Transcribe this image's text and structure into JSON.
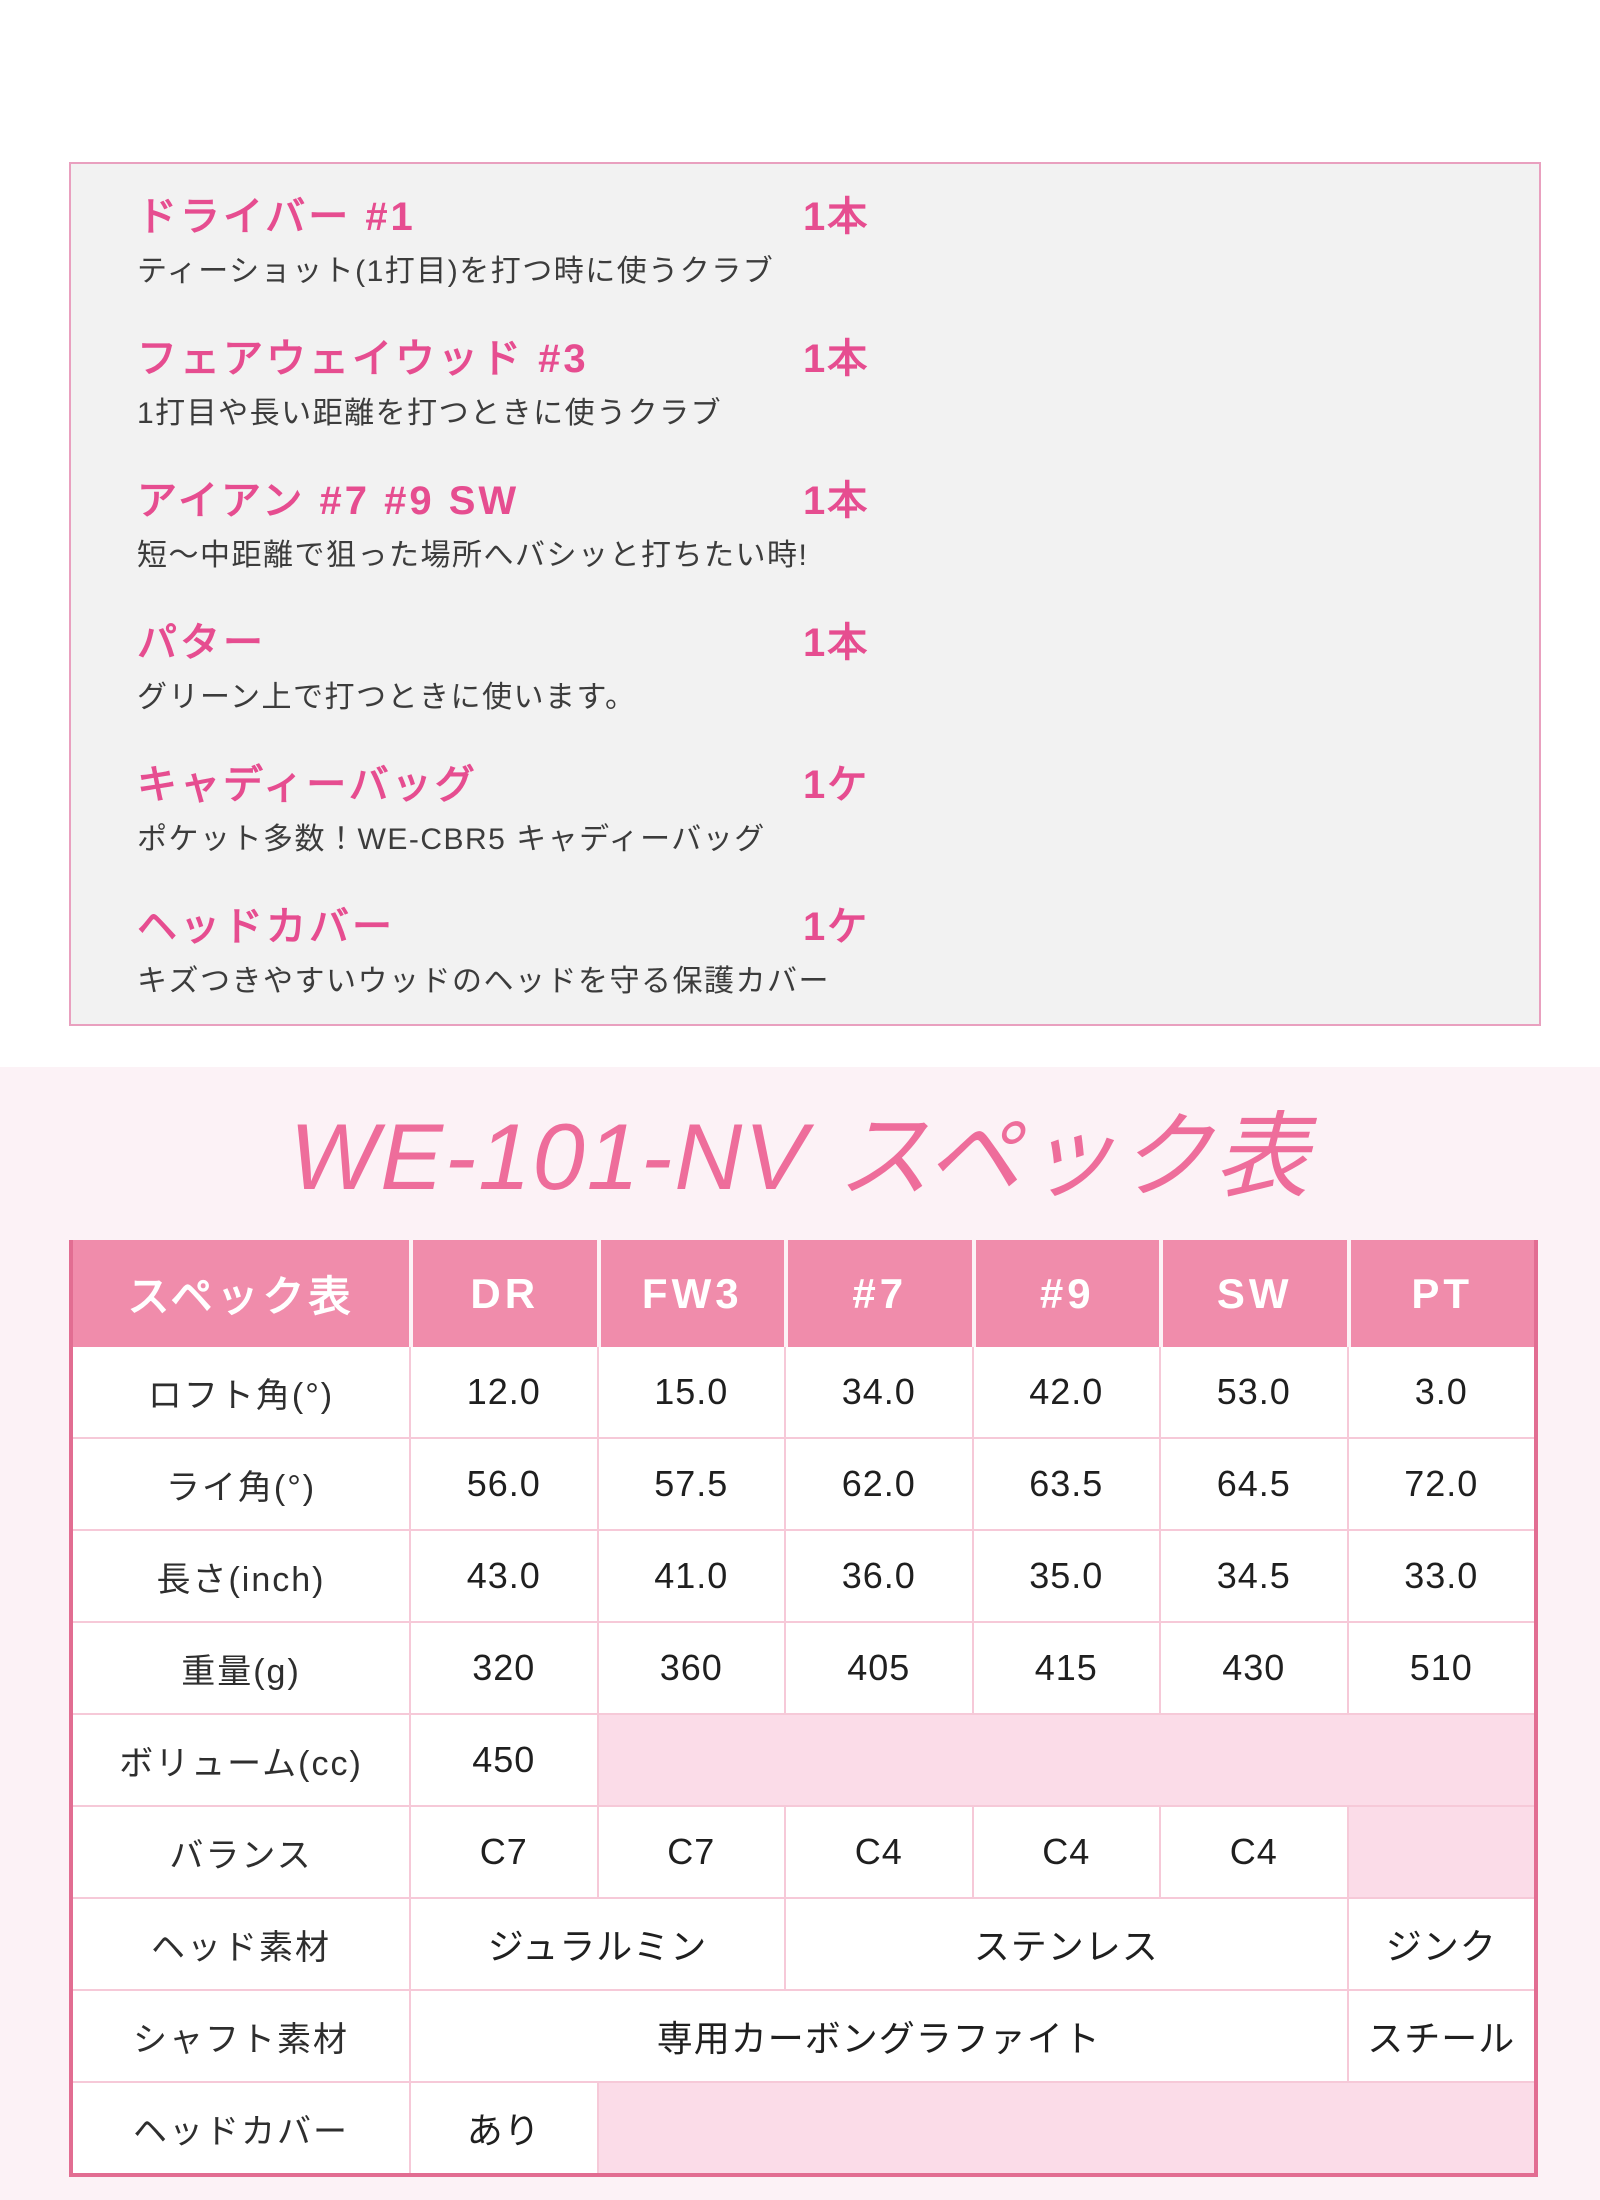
{
  "set_contents": {
    "items": [
      {
        "name": "ドライバー #1",
        "count": "1本",
        "desc": "ティーショット(1打目)を打つ時に使うクラブ"
      },
      {
        "name": "フェアウェイウッド #3",
        "count": "1本",
        "desc": "1打目や長い距離を打つときに使うクラブ"
      },
      {
        "name": "アイアン #7 #9 SW",
        "count": "1本",
        "desc": "短〜中距離で狙った場所へバシッと打ちたい時!"
      },
      {
        "name": "パター",
        "count": "1本",
        "desc": "グリーン上で打つときに使います。"
      },
      {
        "name": "キャディーバッグ",
        "count": "1ケ",
        "desc": "ポケット多数！WE-CBR5 キャディーバッグ"
      },
      {
        "name": "ヘッドカバー",
        "count": "1ケ",
        "desc": "キズつきやすいウッドのヘッドを守る保護カバー"
      }
    ]
  },
  "spec": {
    "title": "WE-101-NV スペック表",
    "table": {
      "header": [
        "スペック表",
        "DR",
        "FW3",
        "#7",
        "#9",
        "SW",
        "PT"
      ],
      "rows": {
        "loft": {
          "label": "ロフト角(°)",
          "values": [
            "12.0",
            "15.0",
            "34.0",
            "42.0",
            "53.0",
            "3.0"
          ]
        },
        "lie": {
          "label": "ライ角(°)",
          "values": [
            "56.0",
            "57.5",
            "62.0",
            "63.5",
            "64.5",
            "72.0"
          ]
        },
        "length": {
          "label": "長さ(inch)",
          "values": [
            "43.0",
            "41.0",
            "36.0",
            "35.0",
            "34.5",
            "33.0"
          ]
        },
        "weight": {
          "label": "重量(g)",
          "values": [
            "320",
            "360",
            "405",
            "415",
            "430",
            "510"
          ]
        },
        "volume": {
          "label": "ボリューム(cc)",
          "dr": "450"
        },
        "balance": {
          "label": "バランス",
          "values": [
            "C7",
            "C7",
            "C4",
            "C4",
            "C4"
          ]
        },
        "head_material": {
          "label": "ヘッド素材",
          "woods": "ジュラルミン",
          "irons": "ステンレス",
          "putter": "ジンク"
        },
        "shaft_material": {
          "label": "シャフト素材",
          "main": "専用カーボングラファイト",
          "putter": "スチール"
        },
        "headcover": {
          "label": "ヘッドカバー",
          "dr": "あり"
        }
      }
    },
    "colors": {
      "accent_pink": "#e64d90",
      "title_pink": "#ee6d9b",
      "header_pink": "#f08cab",
      "blank_cell_pink": "#fbdce8",
      "section_bg": "#fcf2f6"
    }
  }
}
